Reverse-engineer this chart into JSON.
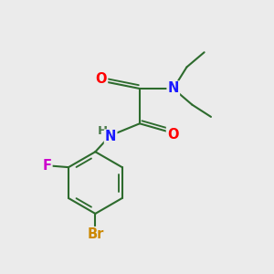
{
  "bg_color": "#ebebeb",
  "bond_color": "#2d6b2d",
  "bond_width": 1.5,
  "atom_colors": {
    "O": "#ff0000",
    "N": "#1a1aff",
    "F": "#cc00cc",
    "Br": "#cc8800",
    "H": "#4a7a4a",
    "C": "#2d6b2d"
  },
  "font_size": 10.5,
  "fs_small": 9.5
}
